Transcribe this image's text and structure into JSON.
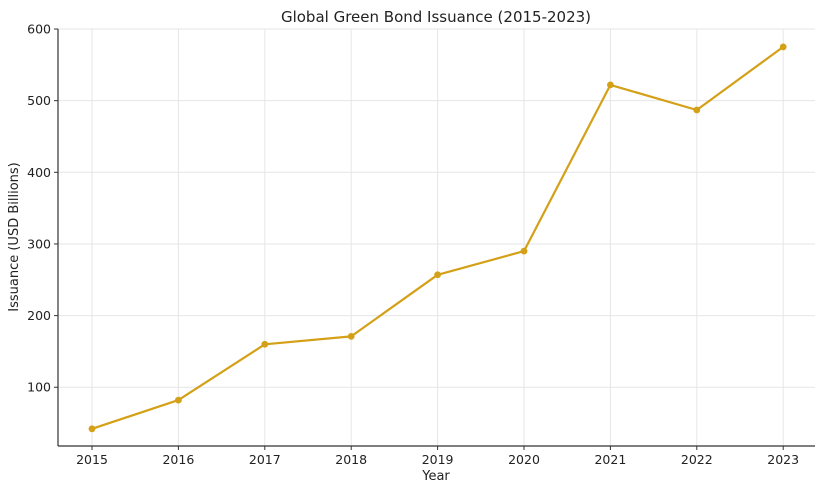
{
  "chart_data": {
    "type": "line",
    "title": "Global Green Bond Issuance (2015-2023)",
    "xlabel": "Year",
    "ylabel": "Issuance (USD Billions)",
    "x": [
      "2015",
      "2016",
      "2017",
      "2018",
      "2019",
      "2020",
      "2021",
      "2022",
      "2023"
    ],
    "series": [
      {
        "values": [
          42,
          82,
          160,
          171,
          257,
          290,
          522,
          487,
          575
        ],
        "color": "#D4A017"
      }
    ],
    "ylim": [
      18,
      600
    ],
    "yticks": [
      100,
      200,
      300,
      400,
      500,
      600
    ],
    "grid": true,
    "markers": true
  }
}
